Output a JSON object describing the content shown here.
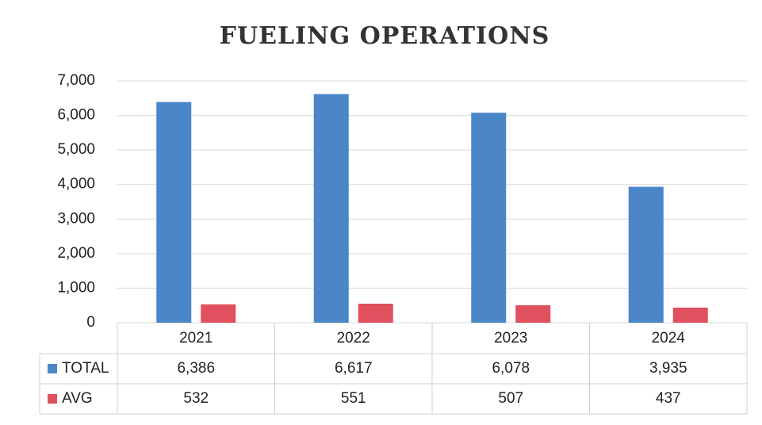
{
  "chart_data": {
    "type": "bar",
    "title": "FUELING OPERATIONS",
    "categories": [
      "2021",
      "2022",
      "2023",
      "2024"
    ],
    "series": [
      {
        "name": "TOTAL",
        "color": "#4a86c8",
        "values": [
          6386,
          6617,
          6078,
          3935
        ],
        "value_labels": [
          "6,386",
          "6,617",
          "6,078",
          "3,935"
        ]
      },
      {
        "name": "AVG",
        "color": "#e0505f",
        "values": [
          532,
          551,
          507,
          437
        ],
        "value_labels": [
          "532",
          "551",
          "507",
          "437"
        ]
      }
    ],
    "ylim": [
      0,
      7000
    ],
    "yticks": [
      0,
      {
        "value": 1000,
        "label": "1,000"
      },
      {
        "value": 2000,
        "label": "2,000"
      },
      {
        "value": 3000,
        "label": "3,000"
      },
      {
        "value": 4000,
        "label": "4,000"
      },
      {
        "value": 5000,
        "label": "5,000"
      },
      {
        "value": 6000,
        "label": "6,000"
      },
      {
        "value": 7000,
        "label": "7,000"
      }
    ],
    "grid": true
  }
}
